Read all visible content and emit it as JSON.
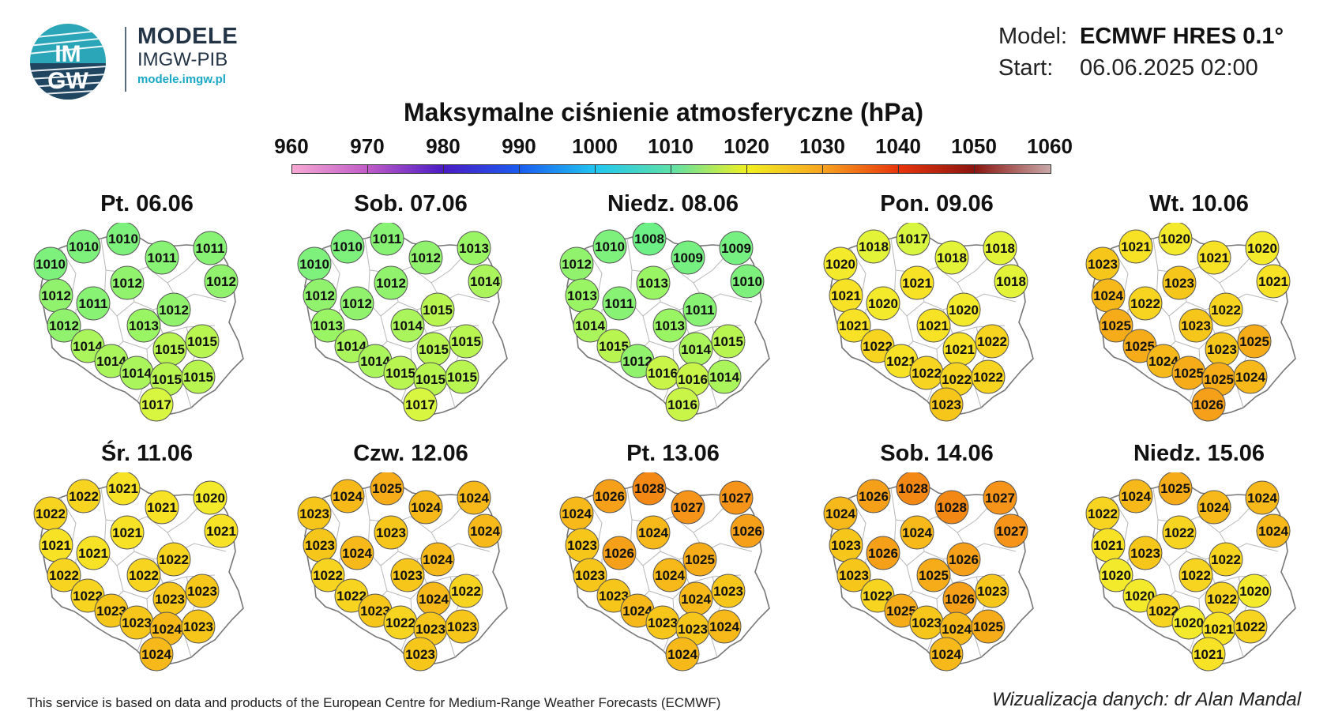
{
  "header": {
    "brand_title": "MODELE",
    "brand_subtitle": "IMGW-PIB",
    "brand_url": "modele.imgw.pl",
    "logo_text_top": "IM",
    "logo_text_bottom": "GW",
    "model_label": "Model:",
    "model_value": "ECMWF HRES 0.1°",
    "start_label": "Start:",
    "start_value": "06.06.2025 02:00"
  },
  "title": "Maksymalne ciśnienie atmosferyczne (hPa)",
  "scale": {
    "labels": [
      "960",
      "970",
      "980",
      "990",
      "1000",
      "1010",
      "1020",
      "1030",
      "1040",
      "1050",
      "1060"
    ],
    "colors": [
      "#f7a8d4",
      "#c05bc7",
      "#4a1bc4",
      "#1a5cf0",
      "#22c6f0",
      "#5ee0a8",
      "#f0f020",
      "#f7a320",
      "#e8340c",
      "#8a1610",
      "#c8a8a8"
    ]
  },
  "panels": [
    {
      "title": "Pt. 06.06",
      "values": [
        1010,
        1010,
        1011,
        1010,
        1011,
        1012,
        1011,
        1012,
        1012,
        1012,
        1013,
        1012,
        1014,
        1014,
        1015,
        1015,
        1014,
        1015,
        1015,
        1017
      ]
    },
    {
      "title": "Sob. 07.06",
      "values": [
        1010,
        1011,
        1012,
        1010,
        1013,
        1012,
        1012,
        1012,
        1014,
        1013,
        1014,
        1015,
        1014,
        1014,
        1015,
        1015,
        1015,
        1015,
        1015,
        1017
      ]
    },
    {
      "title": "Niedz. 08.06",
      "values": [
        1010,
        1008,
        1009,
        1012,
        1009,
        1013,
        1011,
        1013,
        1010,
        1014,
        1013,
        1011,
        1015,
        1012,
        1014,
        1015,
        1016,
        1016,
        1014,
        1016
      ]
    },
    {
      "title": "Pon. 09.06",
      "values": [
        1018,
        1017,
        1018,
        1020,
        1018,
        1021,
        1020,
        1021,
        1018,
        1021,
        1021,
        1020,
        1022,
        1021,
        1021,
        1022,
        1022,
        1022,
        1022,
        1023
      ]
    },
    {
      "title": "Wt. 10.06",
      "values": [
        1021,
        1020,
        1021,
        1023,
        1020,
        1024,
        1022,
        1023,
        1021,
        1025,
        1023,
        1022,
        1025,
        1024,
        1023,
        1025,
        1025,
        1025,
        1024,
        1026
      ]
    },
    {
      "title": "Śr. 11.06",
      "values": [
        1022,
        1021,
        1021,
        1022,
        1020,
        1021,
        1021,
        1021,
        1021,
        1022,
        1022,
        1022,
        1022,
        1023,
        1023,
        1023,
        1023,
        1024,
        1023,
        1024
      ]
    },
    {
      "title": "Czw. 12.06",
      "values": [
        1024,
        1025,
        1024,
        1023,
        1024,
        1023,
        1024,
        1023,
        1024,
        1022,
        1023,
        1024,
        1022,
        1023,
        1024,
        1022,
        1022,
        1023,
        1023,
        1023
      ]
    },
    {
      "title": "Pt. 13.06",
      "values": [
        1026,
        1028,
        1027,
        1024,
        1027,
        1023,
        1026,
        1024,
        1026,
        1023,
        1024,
        1025,
        1023,
        1024,
        1024,
        1023,
        1023,
        1023,
        1024,
        1024
      ]
    },
    {
      "title": "Sob. 14.06",
      "values": [
        1026,
        1028,
        1028,
        1024,
        1027,
        1023,
        1026,
        1024,
        1027,
        1023,
        1025,
        1026,
        1022,
        1025,
        1026,
        1023,
        1023,
        1024,
        1025,
        1024
      ]
    },
    {
      "title": "Niedz. 15.06",
      "values": [
        1024,
        1025,
        1024,
        1022,
        1024,
        1021,
        1023,
        1022,
        1024,
        1020,
        1022,
        1022,
        1020,
        1022,
        1022,
        1020,
        1020,
        1021,
        1022,
        1021
      ]
    }
  ],
  "footer": {
    "attribution": "This service is based on data and products of the European Centre for Medium-Range Weather Forecasts (ECMWF)",
    "credit": "Wizualizacja danych: dr Alan Mandal"
  }
}
